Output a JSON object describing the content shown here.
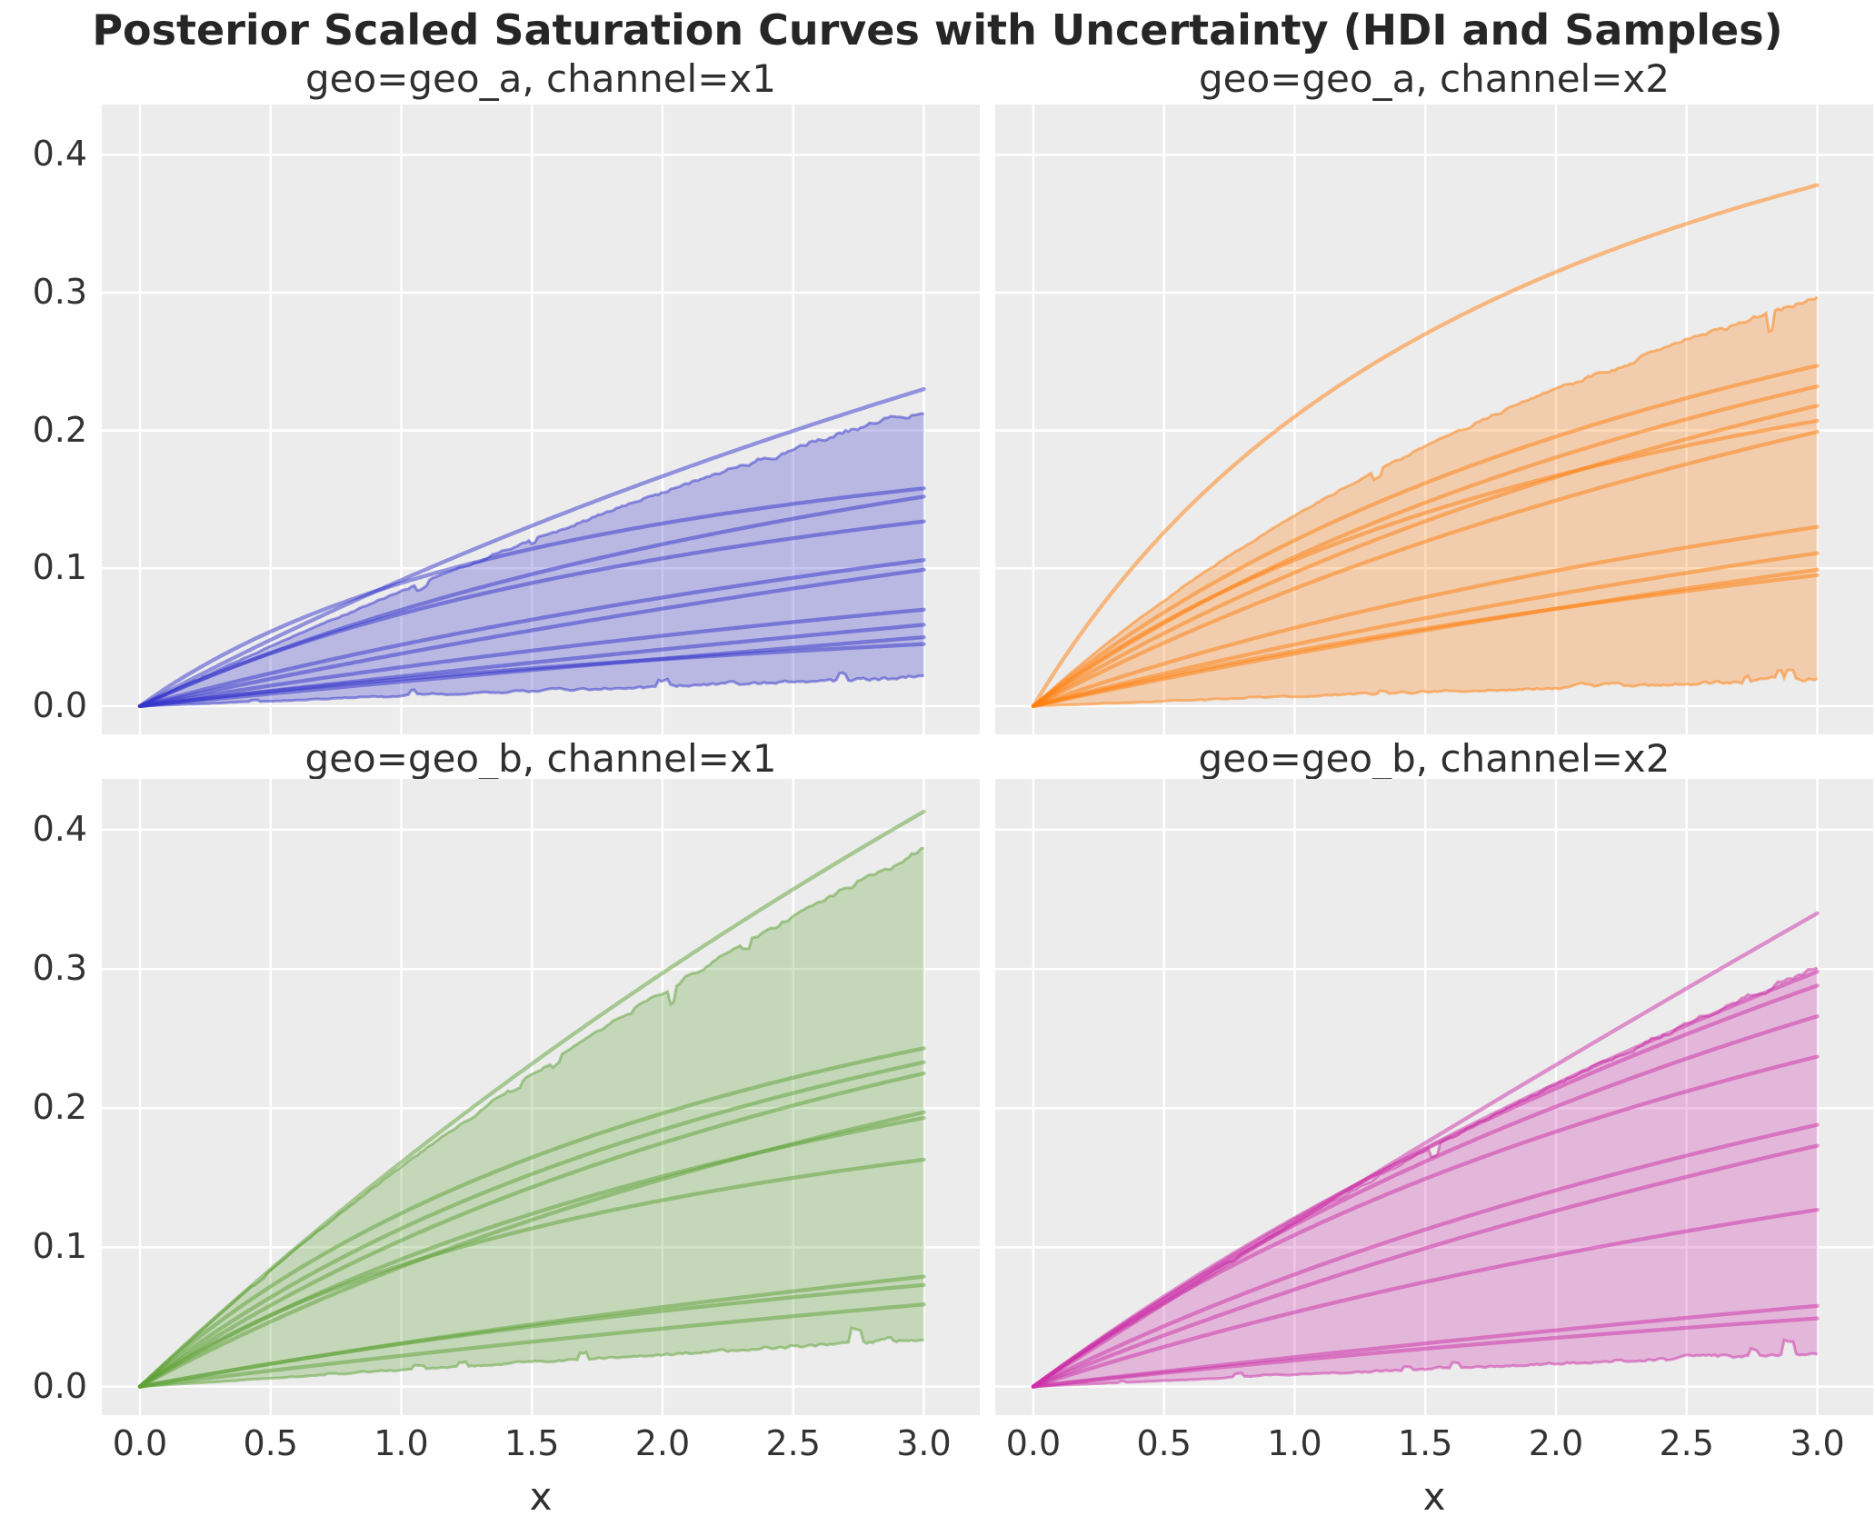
{
  "figure": {
    "title": "Posterior Scaled Saturation Curves with Uncertainty (HDI and Samples)",
    "background": "#ffffff",
    "panel_background": "#ececec",
    "grid_color": "#ffffff",
    "text_color": "#262626"
  },
  "chart_data": {
    "type": "line",
    "title": "Posterior Scaled Saturation Curves with Uncertainty (HDI and Samples)",
    "xlabel": "x",
    "x_ticks": [
      "0.0",
      "0.5",
      "1.0",
      "1.5",
      "2.0",
      "2.5",
      "3.0"
    ],
    "y_ticks": [
      "0.0",
      "0.1",
      "0.2",
      "0.3",
      "0.4"
    ],
    "x_tick_values": [
      0,
      0.5,
      1,
      1.5,
      2,
      2.5,
      3
    ],
    "y_tick_values": [
      0,
      0.1,
      0.2,
      0.3,
      0.4
    ],
    "xlim": [
      -0.146,
      3.214
    ],
    "ylim": [
      -0.0205,
      0.4365
    ],
    "x_range": [
      0,
      3
    ],
    "grid": true,
    "legend": false,
    "curve_model": "y(x) = end_value * ((1+curvature)*(x/3)) / (1 + curvature*(x/3))",
    "subplots": [
      {
        "geo": "geo_a",
        "channel": "x1",
        "title": "geo=geo_a, channel=x1",
        "color": "#3333cc",
        "hdi_band": {
          "upper": {
            "end_value": 0.218,
            "curvature": 0.25
          },
          "lower": {
            "end_value": 0.02,
            "curvature": 0.05
          }
        },
        "sample_curves": [
          {
            "end_value": 0.23,
            "curvature": 0.32
          },
          {
            "end_value": 0.158,
            "curvature": 1.6
          },
          {
            "end_value": 0.152,
            "curvature": 0.7
          },
          {
            "end_value": 0.134,
            "curvature": 1.0
          },
          {
            "end_value": 0.106,
            "curvature": 0.45
          },
          {
            "end_value": 0.099,
            "curvature": 0.25
          },
          {
            "end_value": 0.07,
            "curvature": 0.35
          },
          {
            "end_value": 0.059,
            "curvature": 0.15
          },
          {
            "end_value": 0.05,
            "curvature": 0.1
          },
          {
            "end_value": 0.045,
            "curvature": 0.55
          }
        ]
      },
      {
        "geo": "geo_a",
        "channel": "x2",
        "title": "geo=geo_a, channel=x2",
        "color": "#ff7f0e",
        "hdi_band": {
          "upper": {
            "end_value": 0.297,
            "curvature": 0.75
          },
          "lower": {
            "end_value": 0.018,
            "curvature": 0.1
          }
        },
        "sample_curves": [
          {
            "end_value": 0.378,
            "curvature": 1.5
          },
          {
            "end_value": 0.247,
            "curvature": 0.9
          },
          {
            "end_value": 0.232,
            "curvature": 0.75
          },
          {
            "end_value": 0.218,
            "curvature": 0.6
          },
          {
            "end_value": 0.207,
            "curvature": 1.1
          },
          {
            "end_value": 0.199,
            "curvature": 0.5
          },
          {
            "end_value": 0.13,
            "curvature": 0.55
          },
          {
            "end_value": 0.111,
            "curvature": 0.35
          },
          {
            "end_value": 0.099,
            "curvature": 0.25
          },
          {
            "end_value": 0.095,
            "curvature": 0.45
          }
        ]
      },
      {
        "geo": "geo_b",
        "channel": "x1",
        "title": "geo=geo_b, channel=x1",
        "color": "#5da135",
        "hdi_band": {
          "upper": {
            "end_value": 0.388,
            "curvature": 0.38
          },
          "lower": {
            "end_value": 0.033,
            "curvature": 0.05
          }
        },
        "sample_curves": [
          {
            "end_value": 0.413,
            "curvature": 0.28
          },
          {
            "end_value": 0.243,
            "curvature": 1.1
          },
          {
            "end_value": 0.233,
            "curvature": 0.9
          },
          {
            "end_value": 0.225,
            "curvature": 0.75
          },
          {
            "end_value": 0.197,
            "curvature": 0.55
          },
          {
            "end_value": 0.193,
            "curvature": 0.8
          },
          {
            "end_value": 0.163,
            "curvature": 1.3
          },
          {
            "end_value": 0.079,
            "curvature": 0.3
          },
          {
            "end_value": 0.073,
            "curvature": 0.45
          },
          {
            "end_value": 0.059,
            "curvature": 0.2
          }
        ]
      },
      {
        "geo": "geo_b",
        "channel": "x2",
        "title": "geo=geo_b, channel=x2",
        "color": "#cb2fa8",
        "hdi_band": {
          "upper": {
            "end_value": 0.303,
            "curvature": 0.28
          },
          "lower": {
            "end_value": 0.023,
            "curvature": 0.08
          }
        },
        "sample_curves": [
          {
            "end_value": 0.34,
            "curvature": 0.06
          },
          {
            "end_value": 0.298,
            "curvature": 0.35
          },
          {
            "end_value": 0.288,
            "curvature": 0.45
          },
          {
            "end_value": 0.266,
            "curvature": 0.55
          },
          {
            "end_value": 0.237,
            "curvature": 0.7
          },
          {
            "end_value": 0.188,
            "curvature": 0.5
          },
          {
            "end_value": 0.173,
            "curvature": 0.35
          },
          {
            "end_value": 0.127,
            "curvature": 0.45
          },
          {
            "end_value": 0.058,
            "curvature": 0.15
          },
          {
            "end_value": 0.049,
            "curvature": 0.25
          }
        ]
      }
    ]
  }
}
